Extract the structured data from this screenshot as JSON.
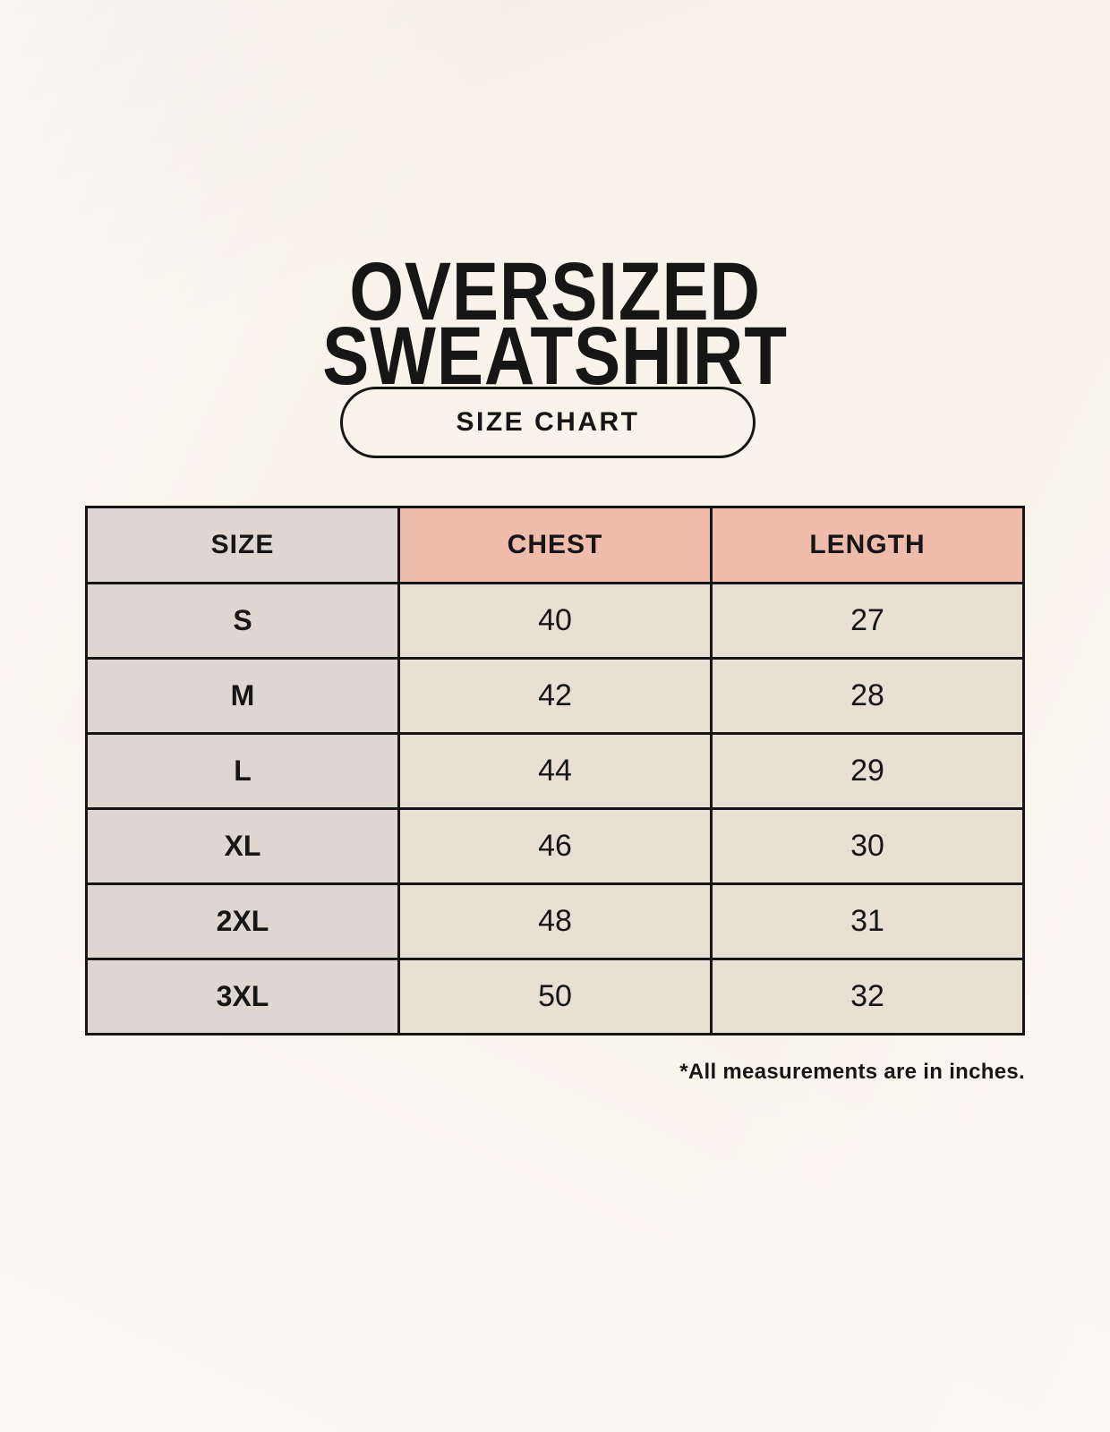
{
  "header": {
    "title_line1": "OVERSIZED",
    "title_line2": "SWEATSHIRT",
    "size_chart_button": "SIZE CHART"
  },
  "table": {
    "headers": [
      "SIZE",
      "CHEST",
      "LENGTH"
    ],
    "rows": [
      {
        "size": "S",
        "chest": "40",
        "length": "27"
      },
      {
        "size": "M",
        "chest": "42",
        "length": "28"
      },
      {
        "size": "L",
        "chest": "44",
        "length": "29"
      },
      {
        "size": "XL",
        "chest": "46",
        "length": "30"
      },
      {
        "size": "2XL",
        "chest": "48",
        "length": "31"
      },
      {
        "size": "3XL",
        "chest": "50",
        "length": "32"
      }
    ],
    "footnote": "*All measurements are in inches.",
    "units": "inches"
  },
  "colors": {
    "background": "#f8f4eb",
    "size_column_bg": "#ded6d1",
    "measure_header_bg": "#efbcab",
    "measure_cell_bg": "#e9e0d4",
    "border": "#161616",
    "text": "#161616"
  }
}
